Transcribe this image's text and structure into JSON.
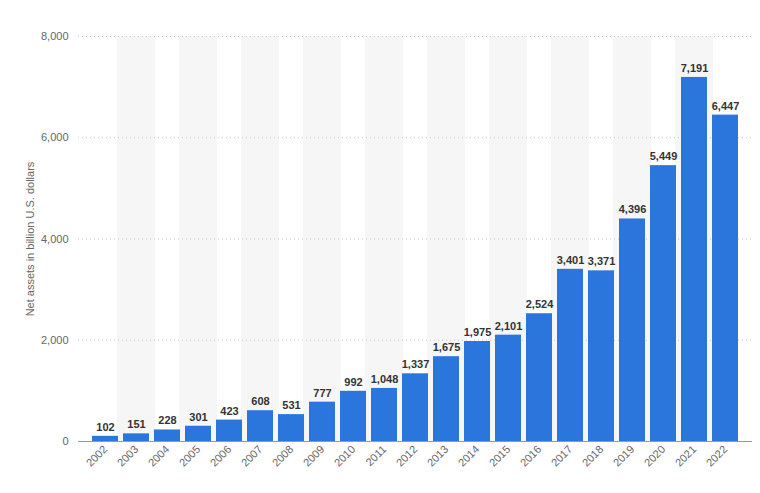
{
  "chart_data": {
    "type": "bar",
    "y_label": "Net assets in billion U.S. dollars",
    "categories": [
      "2002",
      "2003",
      "2004",
      "2005",
      "2006",
      "2007",
      "2008",
      "2009",
      "2010",
      "2011",
      "2012",
      "2013",
      "2014",
      "2015",
      "2016",
      "2017",
      "2018",
      "2019",
      "2020",
      "2021",
      "2022"
    ],
    "values": [
      102,
      151,
      228,
      301,
      423,
      608,
      531,
      777,
      992,
      1048,
      1337,
      1675,
      1975,
      2101,
      2524,
      3401,
      3371,
      4396,
      5449,
      7191,
      6447
    ],
    "value_labels": [
      "102",
      "151",
      "228",
      "301",
      "423",
      "608",
      "531",
      "777",
      "992",
      "1,048",
      "1,337",
      "1,675",
      "1,975",
      "2,101",
      "2,524",
      "3,401",
      "3,371",
      "4,396",
      "5,449",
      "7,191",
      "6,447"
    ],
    "color": "#2a76dd",
    "ylim": [
      0,
      8000
    ],
    "yticks": [
      0,
      {
        "value": 2000,
        "label": "2,000"
      },
      {
        "value": 4000,
        "label": "4,000"
      },
      {
        "value": 6000,
        "label": "6,000"
      },
      {
        "value": 8000,
        "label": "8,000"
      }
    ],
    "grid": true,
    "data_labels": true
  }
}
